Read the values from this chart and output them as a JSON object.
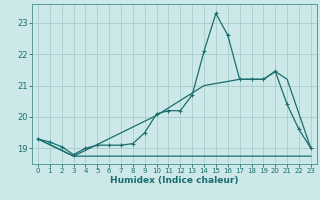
{
  "xlabel": "Humidex (Indice chaleur)",
  "ylabel": "",
  "bg_color": "#cce8e8",
  "grid_color": "#aacccc",
  "line_color": "#1a6e6e",
  "spine_color": "#5a9a9a",
  "xlim": [
    -0.5,
    23.5
  ],
  "ylim": [
    18.5,
    23.6
  ],
  "xticks": [
    0,
    1,
    2,
    3,
    4,
    5,
    6,
    7,
    8,
    9,
    10,
    11,
    12,
    13,
    14,
    15,
    16,
    17,
    18,
    19,
    20,
    21,
    22,
    23
  ],
  "yticks": [
    19,
    20,
    21,
    22,
    23
  ],
  "line1_x": [
    0,
    1,
    2,
    3,
    4,
    5,
    6,
    7,
    8,
    9,
    10,
    11,
    12,
    13,
    14,
    15,
    16,
    17,
    18,
    19,
    20,
    21,
    22,
    23
  ],
  "line1_y": [
    19.3,
    19.2,
    19.05,
    18.8,
    19.0,
    19.1,
    19.1,
    19.1,
    19.15,
    19.5,
    20.1,
    20.2,
    20.2,
    20.7,
    22.1,
    23.3,
    22.6,
    21.2,
    21.2,
    21.2,
    21.45,
    20.4,
    19.6,
    19.0
  ],
  "line2_x": [
    0,
    3,
    10,
    23
  ],
  "line2_y": [
    19.3,
    18.75,
    18.75,
    18.75
  ],
  "line3_x": [
    0,
    3,
    10,
    14,
    17,
    19,
    20,
    21,
    23
  ],
  "line3_y": [
    19.3,
    18.75,
    20.05,
    21.0,
    21.2,
    21.2,
    21.45,
    21.2,
    19.0
  ]
}
